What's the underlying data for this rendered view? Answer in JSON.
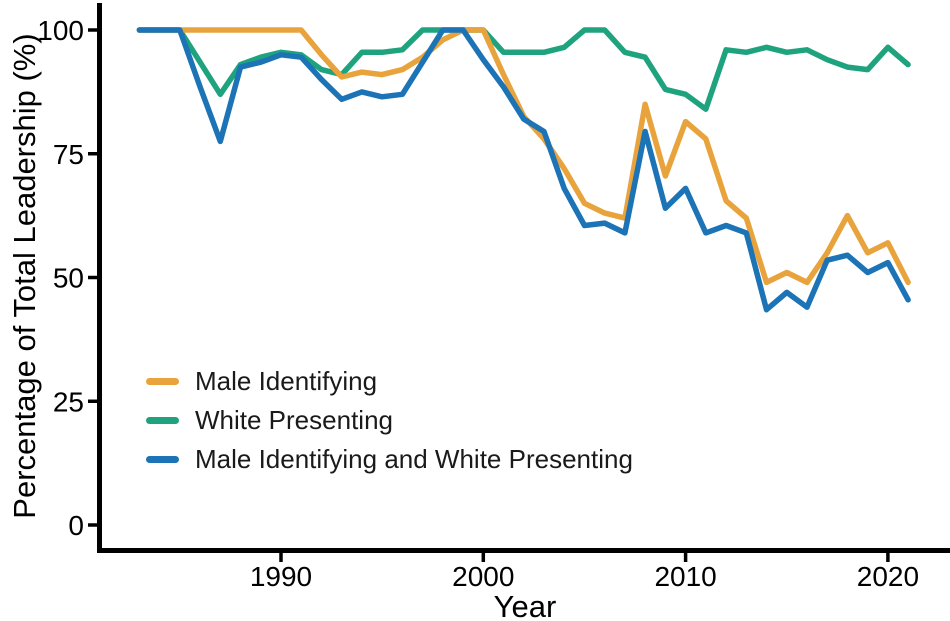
{
  "figure": {
    "background": "#ffffff",
    "axis_color": "#000000",
    "text_color": "#1a1a1a"
  },
  "chart_data": {
    "type": "line",
    "title": "",
    "xlabel": "Year",
    "ylabel": "Percentage of Total Leadership (%)",
    "grid": false,
    "legend_position": "inside-lower-left",
    "xlim": [
      1981,
      2023
    ],
    "ylim": [
      0,
      100
    ],
    "x_ticks": [
      1990,
      2000,
      2010,
      2020
    ],
    "y_ticks": [
      0,
      25,
      50,
      75,
      100
    ],
    "years": [
      1983,
      1984,
      1985,
      1986,
      1987,
      1988,
      1989,
      1990,
      1991,
      1992,
      1993,
      1994,
      1995,
      1996,
      1997,
      1998,
      1999,
      2000,
      2001,
      2002,
      2003,
      2004,
      2005,
      2006,
      2007,
      2008,
      2009,
      2010,
      2011,
      2012,
      2013,
      2014,
      2015,
      2016,
      2017,
      2018,
      2019,
      2020,
      2021
    ],
    "series": [
      {
        "name": "Male Identifying",
        "color": "#E9A33C",
        "values": [
          100,
          100,
          100,
          100,
          100,
          100,
          100,
          100,
          100,
          95,
          90.5,
          91.5,
          91,
          92,
          94.5,
          98,
          100,
          100,
          91,
          82.5,
          78,
          72,
          65,
          63,
          62,
          85,
          70.5,
          81.5,
          78,
          65.5,
          62,
          49,
          51,
          49,
          55,
          62.5,
          55,
          57,
          49
        ]
      },
      {
        "name": "White Presenting",
        "color": "#1FA37F",
        "values": [
          100,
          100,
          100,
          93.5,
          87,
          93,
          94.5,
          95.5,
          95,
          92,
          91,
          95.5,
          95.5,
          96,
          100,
          100,
          100,
          100,
          95.5,
          95.5,
          95.5,
          96.5,
          100,
          100,
          95.5,
          94.5,
          88,
          87,
          84,
          96,
          95.5,
          96.5,
          95.5,
          96,
          94,
          92.5,
          92,
          96.5,
          93
        ]
      },
      {
        "name": "Male Identifying and White Presenting",
        "color": "#1C73B5",
        "values": [
          100,
          100,
          100,
          88.5,
          77.5,
          92.5,
          93.5,
          95,
          94.5,
          90,
          86,
          87.5,
          86.5,
          87,
          93.5,
          100,
          100,
          94,
          88.5,
          82,
          79.5,
          68,
          60.5,
          61,
          59,
          79.5,
          64,
          68,
          59,
          60.5,
          59,
          43.5,
          47,
          44,
          53.5,
          54.5,
          51,
          53,
          45.5
        ]
      }
    ]
  }
}
